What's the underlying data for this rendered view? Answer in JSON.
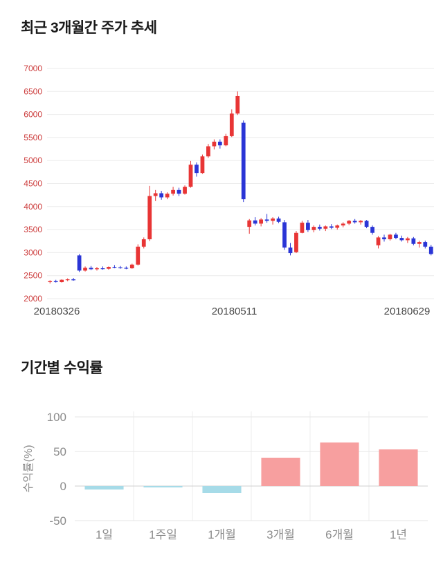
{
  "page": {
    "background": "#ffffff"
  },
  "chart_data": [
    {
      "type": "candlestick",
      "title": "최근 3개월간 주가 추세",
      "ylim": [
        2000,
        7000
      ],
      "yticks": [
        7000,
        6500,
        6000,
        5500,
        5000,
        4500,
        4000,
        3500,
        3000,
        2500,
        2000
      ],
      "xtick_labels": [
        "20180326",
        "20180511",
        "20180629"
      ],
      "up_color": "#e83535",
      "down_color": "#2a35d6",
      "axis_label_color": "#cc3b3b",
      "x_label_color": "#4a4a4a",
      "grid": true,
      "candles": [
        [
          2360,
          2400,
          2330,
          2380
        ],
        [
          2380,
          2410,
          2350,
          2360
        ],
        [
          2360,
          2420,
          2350,
          2410
        ],
        [
          2410,
          2440,
          2380,
          2420
        ],
        [
          2420,
          2450,
          2390,
          2400
        ],
        [
          2940,
          2970,
          2580,
          2610
        ],
        [
          2610,
          2700,
          2590,
          2670
        ],
        [
          2670,
          2710,
          2620,
          2640
        ],
        [
          2640,
          2690,
          2610,
          2660
        ],
        [
          2660,
          2700,
          2630,
          2650
        ],
        [
          2650,
          2700,
          2630,
          2690
        ],
        [
          2690,
          2730,
          2660,
          2680
        ],
        [
          2680,
          2710,
          2650,
          2670
        ],
        [
          2670,
          2700,
          2640,
          2660
        ],
        [
          2660,
          2760,
          2650,
          2740
        ],
        [
          2740,
          3180,
          2720,
          3130
        ],
        [
          3130,
          3330,
          3090,
          3290
        ],
        [
          3290,
          4450,
          3250,
          4230
        ],
        [
          4230,
          4360,
          4120,
          4290
        ],
        [
          4290,
          4340,
          4150,
          4200
        ],
        [
          4200,
          4310,
          4160,
          4280
        ],
        [
          4280,
          4430,
          4240,
          4360
        ],
        [
          4360,
          4410,
          4230,
          4280
        ],
        [
          4280,
          4460,
          4260,
          4430
        ],
        [
          4430,
          4990,
          4410,
          4910
        ],
        [
          4910,
          4960,
          4650,
          4730
        ],
        [
          4730,
          5130,
          4710,
          5090
        ],
        [
          5090,
          5360,
          5060,
          5310
        ],
        [
          5310,
          5460,
          5240,
          5410
        ],
        [
          5410,
          5460,
          5260,
          5330
        ],
        [
          5330,
          5580,
          5310,
          5530
        ],
        [
          5530,
          6110,
          5510,
          6020
        ],
        [
          6020,
          6500,
          5990,
          6400
        ],
        [
          5820,
          5870,
          4100,
          4160
        ],
        [
          3560,
          3730,
          3410,
          3700
        ],
        [
          3700,
          3770,
          3590,
          3630
        ],
        [
          3630,
          3750,
          3570,
          3720
        ],
        [
          3720,
          3840,
          3650,
          3690
        ],
        [
          3690,
          3770,
          3610,
          3740
        ],
        [
          3740,
          3780,
          3640,
          3670
        ],
        [
          3660,
          3710,
          3060,
          3110
        ],
        [
          3110,
          3210,
          2940,
          2990
        ],
        [
          3010,
          3470,
          2990,
          3430
        ],
        [
          3430,
          3690,
          3420,
          3650
        ],
        [
          3650,
          3710,
          3450,
          3490
        ],
        [
          3490,
          3590,
          3440,
          3560
        ],
        [
          3560,
          3610,
          3480,
          3520
        ],
        [
          3520,
          3590,
          3470,
          3570
        ],
        [
          3570,
          3620,
          3510,
          3540
        ],
        [
          3540,
          3610,
          3500,
          3590
        ],
        [
          3590,
          3660,
          3550,
          3630
        ],
        [
          3630,
          3710,
          3600,
          3690
        ],
        [
          3690,
          3730,
          3630,
          3660
        ],
        [
          3660,
          3710,
          3610,
          3690
        ],
        [
          3690,
          3710,
          3530,
          3560
        ],
        [
          3560,
          3590,
          3390,
          3430
        ],
        [
          3160,
          3360,
          3090,
          3330
        ],
        [
          3330,
          3390,
          3240,
          3290
        ],
        [
          3290,
          3410,
          3260,
          3390
        ],
        [
          3390,
          3430,
          3290,
          3320
        ],
        [
          3320,
          3370,
          3240,
          3270
        ],
        [
          3270,
          3340,
          3210,
          3310
        ],
        [
          3310,
          3340,
          3160,
          3190
        ],
        [
          3190,
          3260,
          3110,
          3230
        ],
        [
          3230,
          3260,
          3090,
          3130
        ],
        [
          3130,
          3170,
          2940,
          2970
        ]
      ]
    },
    {
      "type": "bar",
      "title": "기간별 수익률",
      "ylabel": "수익률(%)",
      "categories": [
        "1일",
        "1주일",
        "1개월",
        "3개월",
        "6개월",
        "1년"
      ],
      "values": [
        -5,
        -2,
        -10,
        41,
        63,
        53
      ],
      "ylim": [
        -50,
        100
      ],
      "yticks": [
        100,
        50,
        0,
        -50
      ],
      "pos_color": "#f79f9f",
      "neg_color": "#a6dbe8",
      "axis_label_color": "#8c8c8c",
      "grid": true
    }
  ]
}
